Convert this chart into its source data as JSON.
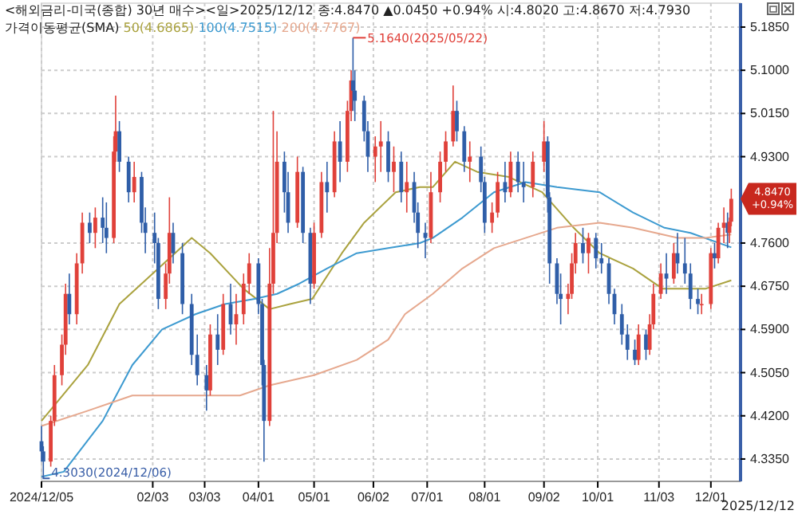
{
  "chart_data": {
    "type": "candlestick",
    "title": "<해외금리-미국(종합) 30년 매수><일>2025/12/12 종:4.8470 ▲0.0450 +0.94% 시:4.8020 고:4.8670 저:4.7930",
    "legend_title": "가격이동평균(SMA)",
    "legend": "top left",
    "grid": true,
    "x": [
      "2024-12-05",
      "2024-12-06",
      "2024-12-10",
      "2024-12-12",
      "2024-12-16",
      "2024-12-18",
      "2024-12-20",
      "2024-12-24",
      "2024-12-27",
      "2024-12-31",
      "2025-01-03",
      "2025-01-07",
      "2025-01-09",
      "2025-01-13",
      "2025-01-14",
      "2025-01-16",
      "2025-01-21",
      "2025-01-24",
      "2025-01-28",
      "2025-01-30",
      "2025-02-04",
      "2025-02-06",
      "2025-02-10",
      "2025-02-12",
      "2025-02-14",
      "2025-02-19",
      "2025-02-24",
      "2025-02-27",
      "2025-03-04",
      "2025-03-06",
      "2025-03-10",
      "2025-03-13",
      "2025-03-17",
      "2025-03-20",
      "2025-03-24",
      "2025-03-27",
      "2025-04-01",
      "2025-04-03",
      "2025-04-04",
      "2025-04-07",
      "2025-04-09",
      "2025-04-11",
      "2025-04-15",
      "2025-04-17",
      "2025-04-22",
      "2025-04-25",
      "2025-04-29",
      "2025-05-01",
      "2025-05-05",
      "2025-05-08",
      "2025-05-12",
      "2025-05-15",
      "2025-05-19",
      "2025-05-21",
      "2025-05-22",
      "2025-05-23",
      "2025-05-28",
      "2025-05-30",
      "2025-06-03",
      "2025-06-06",
      "2025-06-10",
      "2025-06-13",
      "2025-06-17",
      "2025-06-20",
      "2025-06-24",
      "2025-06-26",
      "2025-06-30",
      "2025-07-03",
      "2025-07-08",
      "2025-07-11",
      "2025-07-15",
      "2025-07-17",
      "2025-07-21",
      "2025-07-24",
      "2025-07-30",
      "2025-08-01",
      "2025-08-05",
      "2025-08-08",
      "2025-08-12",
      "2025-08-15",
      "2025-08-19",
      "2025-08-22",
      "2025-08-27",
      "2025-09-02",
      "2025-09-04",
      "2025-09-05",
      "2025-09-09",
      "2025-09-11",
      "2025-09-15",
      "2025-09-17",
      "2025-09-19",
      "2025-09-23",
      "2025-09-26",
      "2025-09-30",
      "2025-10-03",
      "2025-10-07",
      "2025-10-10",
      "2025-10-14",
      "2025-10-17",
      "2025-10-21",
      "2025-10-23",
      "2025-10-27",
      "2025-10-29",
      "2025-10-31",
      "2025-11-04",
      "2025-11-07",
      "2025-11-11",
      "2025-11-13",
      "2025-11-17",
      "2025-11-20",
      "2025-11-24",
      "2025-11-26",
      "2025-12-01",
      "2025-12-03",
      "2025-12-05",
      "2025-12-08",
      "2025-12-10",
      "2025-12-11",
      "2025-12-12"
    ],
    "ohlc": [
      [
        4.37,
        4.4,
        4.33,
        4.35
      ],
      [
        4.35,
        4.36,
        4.303,
        4.33
      ],
      [
        4.33,
        4.42,
        4.32,
        4.41
      ],
      [
        4.41,
        4.52,
        4.4,
        4.5
      ],
      [
        4.5,
        4.58,
        4.48,
        4.56
      ],
      [
        4.56,
        4.68,
        4.54,
        4.66
      ],
      [
        4.66,
        4.7,
        4.6,
        4.62
      ],
      [
        4.62,
        4.74,
        4.6,
        4.72
      ],
      [
        4.72,
        4.82,
        4.7,
        4.8
      ],
      [
        4.8,
        4.82,
        4.76,
        4.78
      ],
      [
        4.78,
        4.83,
        4.75,
        4.81
      ],
      [
        4.81,
        4.85,
        4.76,
        4.79
      ],
      [
        4.79,
        4.84,
        4.74,
        4.77
      ],
      [
        4.77,
        4.97,
        4.76,
        4.94
      ],
      [
        4.94,
        5.05,
        4.92,
        4.98
      ],
      [
        4.98,
        5.0,
        4.9,
        4.92
      ],
      [
        4.92,
        4.93,
        4.84,
        4.86
      ],
      [
        4.86,
        4.92,
        4.84,
        4.89
      ],
      [
        4.89,
        4.9,
        4.78,
        4.8
      ],
      [
        4.8,
        4.83,
        4.74,
        4.78
      ],
      [
        4.78,
        4.82,
        4.72,
        4.76
      ],
      [
        4.76,
        4.77,
        4.63,
        4.65
      ],
      [
        4.65,
        4.72,
        4.63,
        4.7
      ],
      [
        4.7,
        4.85,
        4.68,
        4.78
      ],
      [
        4.78,
        4.8,
        4.72,
        4.74
      ],
      [
        4.74,
        4.76,
        4.62,
        4.64
      ],
      [
        4.64,
        4.66,
        4.52,
        4.54
      ],
      [
        4.54,
        4.58,
        4.48,
        4.5
      ],
      [
        4.5,
        4.52,
        4.43,
        4.47
      ],
      [
        4.47,
        4.6,
        4.46,
        4.58
      ],
      [
        4.58,
        4.62,
        4.52,
        4.55
      ],
      [
        4.55,
        4.66,
        4.54,
        4.64
      ],
      [
        4.64,
        4.68,
        4.58,
        4.6
      ],
      [
        4.6,
        4.66,
        4.56,
        4.62
      ],
      [
        4.62,
        4.7,
        4.6,
        4.68
      ],
      [
        4.68,
        4.74,
        4.66,
        4.72
      ],
      [
        4.72,
        4.73,
        4.62,
        4.64
      ],
      [
        4.64,
        4.65,
        4.48,
        4.52
      ],
      [
        4.52,
        4.53,
        4.33,
        4.41
      ],
      [
        4.41,
        4.75,
        4.4,
        4.68
      ],
      [
        4.68,
        5.02,
        4.66,
        4.78
      ],
      [
        4.78,
        4.98,
        4.76,
        4.92
      ],
      [
        4.92,
        4.94,
        4.82,
        4.86
      ],
      [
        4.86,
        4.9,
        4.78,
        4.8
      ],
      [
        4.8,
        4.93,
        4.79,
        4.9
      ],
      [
        4.9,
        4.91,
        4.76,
        4.78
      ],
      [
        4.78,
        4.79,
        4.64,
        4.68
      ],
      [
        4.68,
        4.8,
        4.67,
        4.78
      ],
      [
        4.78,
        4.9,
        4.77,
        4.88
      ],
      [
        4.88,
        4.92,
        4.82,
        4.86
      ],
      [
        4.86,
        4.98,
        4.85,
        4.96
      ],
      [
        4.96,
        5.0,
        4.88,
        4.92
      ],
      [
        4.92,
        5.04,
        4.9,
        5.02
      ],
      [
        5.02,
        5.1,
        5.0,
        5.08
      ],
      [
        5.08,
        5.164,
        5.02,
        5.06
      ],
      [
        5.06,
        5.1,
        5.0,
        5.04
      ],
      [
        5.04,
        5.05,
        4.96,
        4.98
      ],
      [
        4.98,
        5.0,
        4.9,
        4.93
      ],
      [
        4.93,
        4.97,
        4.88,
        4.95
      ],
      [
        4.95,
        5.0,
        4.9,
        4.96
      ],
      [
        4.96,
        4.98,
        4.88,
        4.9
      ],
      [
        4.9,
        4.95,
        4.86,
        4.92
      ],
      [
        4.92,
        4.94,
        4.84,
        4.86
      ],
      [
        4.86,
        4.92,
        4.82,
        4.88
      ],
      [
        4.88,
        4.9,
        4.8,
        4.82
      ],
      [
        4.82,
        4.84,
        4.75,
        4.78
      ],
      [
        4.78,
        4.8,
        4.73,
        4.77
      ],
      [
        4.77,
        4.9,
        4.76,
        4.86
      ],
      [
        4.86,
        4.94,
        4.84,
        4.92
      ],
      [
        4.92,
        4.98,
        4.9,
        4.96
      ],
      [
        4.96,
        5.07,
        4.95,
        5.02
      ],
      [
        5.02,
        5.04,
        4.96,
        4.98
      ],
      [
        4.98,
        4.99,
        4.9,
        4.92
      ],
      [
        4.92,
        4.96,
        4.88,
        4.93
      ],
      [
        4.93,
        4.95,
        4.86,
        4.88
      ],
      [
        4.88,
        4.89,
        4.78,
        4.8
      ],
      [
        4.8,
        4.84,
        4.78,
        4.82
      ],
      [
        4.82,
        4.9,
        4.81,
        4.88
      ],
      [
        4.88,
        4.92,
        4.84,
        4.86
      ],
      [
        4.86,
        4.94,
        4.85,
        4.92
      ],
      [
        4.92,
        4.94,
        4.86,
        4.88
      ],
      [
        4.88,
        4.92,
        4.84,
        4.87
      ],
      [
        4.87,
        4.94,
        4.85,
        4.92
      ],
      [
        4.92,
        5.0,
        4.9,
        4.96
      ],
      [
        4.96,
        4.97,
        4.82,
        4.85
      ],
      [
        4.85,
        4.86,
        4.68,
        4.72
      ],
      [
        4.72,
        4.73,
        4.64,
        4.66
      ],
      [
        4.66,
        4.7,
        4.6,
        4.65
      ],
      [
        4.65,
        4.68,
        4.62,
        4.66
      ],
      [
        4.66,
        4.74,
        4.65,
        4.72
      ],
      [
        4.72,
        4.78,
        4.7,
        4.76
      ],
      [
        4.76,
        4.79,
        4.72,
        4.74
      ],
      [
        4.74,
        4.78,
        4.7,
        4.77
      ],
      [
        4.77,
        4.78,
        4.71,
        4.73
      ],
      [
        4.73,
        4.76,
        4.7,
        4.72
      ],
      [
        4.72,
        4.73,
        4.64,
        4.66
      ],
      [
        4.66,
        4.67,
        4.6,
        4.62
      ],
      [
        4.62,
        4.64,
        4.56,
        4.58
      ],
      [
        4.58,
        4.6,
        4.53,
        4.55
      ],
      [
        4.55,
        4.57,
        4.52,
        4.53
      ],
      [
        4.53,
        4.6,
        4.52,
        4.58
      ],
      [
        4.58,
        4.59,
        4.53,
        4.55
      ],
      [
        4.55,
        4.62,
        4.54,
        4.6
      ],
      [
        4.6,
        4.68,
        4.59,
        4.66
      ],
      [
        4.66,
        4.72,
        4.65,
        4.7
      ],
      [
        4.7,
        4.74,
        4.66,
        4.69
      ],
      [
        4.69,
        4.76,
        4.68,
        4.74
      ],
      [
        4.74,
        4.78,
        4.7,
        4.72
      ],
      [
        4.72,
        4.77,
        4.68,
        4.7
      ],
      [
        4.7,
        4.72,
        4.63,
        4.65
      ],
      [
        4.65,
        4.67,
        4.62,
        4.64
      ],
      [
        4.64,
        4.66,
        4.62,
        4.64
      ],
      [
        4.64,
        4.75,
        4.63,
        4.74
      ],
      [
        4.74,
        4.76,
        4.71,
        4.73
      ],
      [
        4.73,
        4.8,
        4.72,
        4.79
      ],
      [
        4.79,
        4.83,
        4.76,
        4.8
      ],
      [
        4.8,
        4.82,
        4.75,
        4.78
      ],
      [
        4.78,
        4.81,
        4.76,
        4.802
      ],
      [
        4.802,
        4.867,
        4.793,
        4.847
      ]
    ],
    "series": [
      {
        "name": "50(4.6865)",
        "type": "line",
        "color": "#aaa23e",
        "x": [
          "2024-12-05",
          "2024-12-30",
          "2025-01-16",
          "2025-02-03",
          "2025-02-24",
          "2025-03-06",
          "2025-03-24",
          "2025-04-07",
          "2025-04-18",
          "2025-04-30",
          "2025-05-16",
          "2025-05-28",
          "2025-06-14",
          "2025-06-27",
          "2025-07-04",
          "2025-07-16",
          "2025-07-28",
          "2025-08-14",
          "2025-09-01",
          "2025-09-18",
          "2025-10-02",
          "2025-10-20",
          "2025-11-05",
          "2025-11-13",
          "2025-11-28",
          "2025-12-12"
        ],
        "values": [
          4.41,
          4.52,
          4.64,
          4.7,
          4.77,
          4.74,
          4.67,
          4.63,
          4.64,
          4.65,
          4.74,
          4.8,
          4.86,
          4.87,
          4.87,
          4.92,
          4.9,
          4.89,
          4.86,
          4.79,
          4.74,
          4.71,
          4.67,
          4.67,
          4.67,
          4.6865
        ]
      },
      {
        "name": "100(4.7515)",
        "type": "line",
        "color": "#3d9ad0",
        "x": [
          "2024-12-05",
          "2024-12-17",
          "2025-01-07",
          "2025-01-23",
          "2025-02-08",
          "2025-02-26",
          "2025-03-14",
          "2025-03-30",
          "2025-04-11",
          "2025-04-23",
          "2025-05-08",
          "2025-05-24",
          "2025-06-10",
          "2025-06-27",
          "2025-07-04",
          "2025-07-20",
          "2025-08-06",
          "2025-08-23",
          "2025-09-09",
          "2025-10-02",
          "2025-10-20",
          "2025-11-06",
          "2025-11-20",
          "2025-12-12"
        ],
        "values": [
          4.3,
          4.31,
          4.41,
          4.52,
          4.59,
          4.62,
          4.64,
          4.65,
          4.66,
          4.68,
          4.71,
          4.74,
          4.75,
          4.76,
          4.77,
          4.81,
          4.86,
          4.88,
          4.87,
          4.86,
          4.82,
          4.79,
          4.78,
          4.7515
        ]
      },
      {
        "name": "200(4.7767)",
        "type": "line",
        "color": "#e6a88e",
        "x": [
          "2024-12-05",
          "2024-12-30",
          "2025-01-23",
          "2025-02-08",
          "2025-03-06",
          "2025-03-22",
          "2025-04-07",
          "2025-05-01",
          "2025-05-24",
          "2025-06-10",
          "2025-06-19",
          "2025-07-04",
          "2025-07-20",
          "2025-08-06",
          "2025-08-23",
          "2025-09-09",
          "2025-10-02",
          "2025-10-20",
          "2025-11-13",
          "2025-11-28",
          "2025-12-12"
        ],
        "values": [
          4.4,
          4.43,
          4.46,
          4.46,
          4.46,
          4.46,
          4.48,
          4.5,
          4.53,
          4.57,
          4.62,
          4.66,
          4.71,
          4.75,
          4.77,
          4.79,
          4.8,
          4.79,
          4.77,
          4.77,
          4.7767
        ]
      }
    ],
    "xlim": [
      "2024-12-05",
      "2025-12-17"
    ],
    "xticks": [
      {
        "value": "2024-12-05",
        "label": "2024/12/05"
      },
      {
        "value": "2025-02-03",
        "label": "02/03"
      },
      {
        "value": "2025-03-03",
        "label": "03/03"
      },
      {
        "value": "2025-04-01",
        "label": "04/01"
      },
      {
        "value": "2025-05-01",
        "label": "05/01"
      },
      {
        "value": "2025-06-02",
        "label": "06/02"
      },
      {
        "value": "2025-07-01",
        "label": "07/01"
      },
      {
        "value": "2025-08-01",
        "label": "08/01"
      },
      {
        "value": "2025-09-02",
        "label": "09/02"
      },
      {
        "value": "2025-10-01",
        "label": "10/01"
      },
      {
        "value": "2025-11-03",
        "label": "11/03"
      },
      {
        "value": "2025-12-01",
        "label": "12/01"
      }
    ],
    "ylim": [
      4.291,
      5.232
    ],
    "yticks": [
      {
        "value": 4.335,
        "label": "4.3350"
      },
      {
        "value": 4.42,
        "label": "4.4200"
      },
      {
        "value": 4.505,
        "label": "4.5050"
      },
      {
        "value": 4.59,
        "label": "4.5900"
      },
      {
        "value": 4.675,
        "label": "4.6750"
      },
      {
        "value": 4.76,
        "label": "4.7600"
      },
      {
        "value": 4.93,
        "label": "4.9300"
      },
      {
        "value": 5.015,
        "label": "5.0150"
      },
      {
        "value": 5.1,
        "label": "5.1000"
      },
      {
        "value": 5.185,
        "label": "5.1850"
      }
    ],
    "annotations": [
      {
        "text": "5.1640(2025/05/22)",
        "x": "2025-05-22",
        "y": 5.164
      },
      {
        "text": "4.3030(2024/12/06)",
        "x": "2024-12-06",
        "y": 4.303
      },
      {
        "text": "4.8470 +0.94%",
        "x": "2025-12-12",
        "y": 4.847
      },
      "2025/12/12"
    ]
  }
}
